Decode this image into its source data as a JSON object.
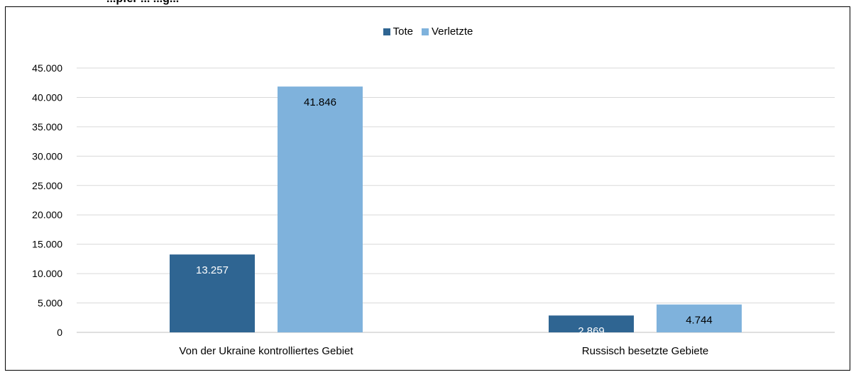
{
  "header_fragment": "...pfer ... ...g...",
  "colors": {
    "tote": "#2f6592",
    "verletzte": "#7fb2dc",
    "grid": "#d9d9d9",
    "axis": "#bfbfbf"
  },
  "chart_data": {
    "type": "bar",
    "categories": [
      "Von der Ukraine kontrolliertes Gebiet",
      "Russisch besetzte Gebiete"
    ],
    "series": [
      {
        "name": "Tote",
        "values": [
          13257,
          2869
        ],
        "labels": [
          "13.257",
          "2.869"
        ]
      },
      {
        "name": "Verletzte",
        "values": [
          41846,
          4744
        ],
        "labels": [
          "41.846",
          "4.744"
        ]
      }
    ],
    "ylim": [
      0,
      45000
    ],
    "yticks": [
      0,
      5000,
      10000,
      15000,
      20000,
      25000,
      30000,
      35000,
      40000,
      45000
    ],
    "ytick_labels": [
      "0",
      "5.000",
      "10.000",
      "15.000",
      "20.000",
      "25.000",
      "30.000",
      "35.000",
      "40.000",
      "45.000"
    ],
    "grid": true,
    "legend_position": "top-center"
  }
}
